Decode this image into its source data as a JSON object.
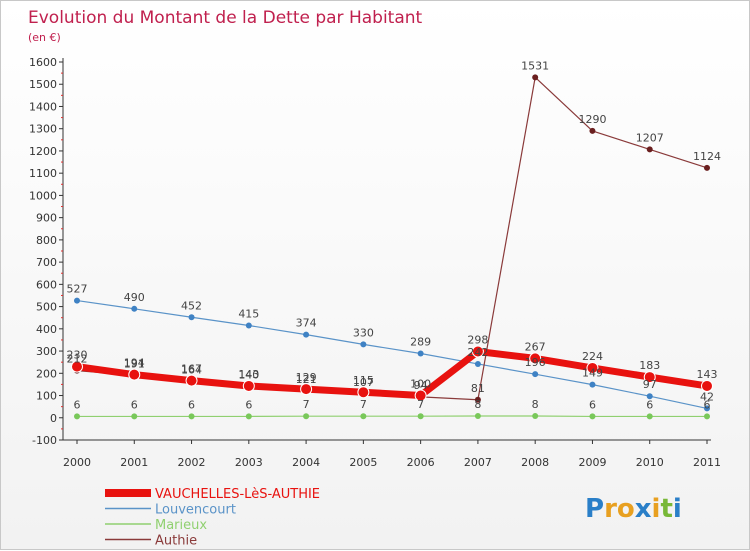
{
  "chart_data": {
    "type": "line",
    "title": "Evolution du Montant de la Dette par Habitant",
    "subtitle": "(en €)",
    "categories": [
      "2000",
      "2001",
      "2002",
      "2003",
      "2004",
      "2005",
      "2006",
      "2007",
      "2008",
      "2009",
      "2010",
      "2011"
    ],
    "ylim": [
      -100,
      1600
    ],
    "yticks": [
      -100,
      0,
      100,
      200,
      300,
      400,
      500,
      600,
      700,
      800,
      900,
      1000,
      1100,
      1200,
      1300,
      1400,
      1500,
      1600
    ],
    "grid": false,
    "legend_position": "bottom-left",
    "series": [
      {
        "name": "Louvencourt",
        "color": "#5a93c8",
        "marker": "#3f82c4",
        "width": 1.2,
        "values": [
          527,
          490,
          452,
          415,
          374,
          330,
          289,
          242,
          196,
          149,
          97,
          42
        ]
      },
      {
        "name": "Marieux",
        "color": "#90d070",
        "marker": "#79c85a",
        "width": 1.2,
        "values": [
          6,
          6,
          6,
          6,
          7,
          7,
          7,
          8,
          8,
          6,
          6,
          6
        ]
      },
      {
        "name": "Authie",
        "color": "#8a3a3a",
        "marker": "#6a1f1f",
        "width": 1.2,
        "values": [
          212,
          191,
          164,
          140,
          121,
          107,
          94,
          81,
          1531,
          1290,
          1207,
          1124
        ]
      },
      {
        "name": "VAUCHELLES-LèS-AUTHIE",
        "color": "#e8120f",
        "marker": "#e8120f",
        "width": 7,
        "values": [
          230,
          194,
          167,
          143,
          129,
          115,
          100,
          298,
          267,
          224,
          183,
          143
        ]
      }
    ]
  },
  "logo": {
    "letters": [
      "P",
      "r",
      "o",
      "x",
      "i",
      "t",
      "i"
    ],
    "colors": [
      "#2a7fc8",
      "#e8a020",
      "#e8a020",
      "#2a7fc8",
      "#e8a020",
      "#78b838",
      "#2a7fc8"
    ]
  }
}
